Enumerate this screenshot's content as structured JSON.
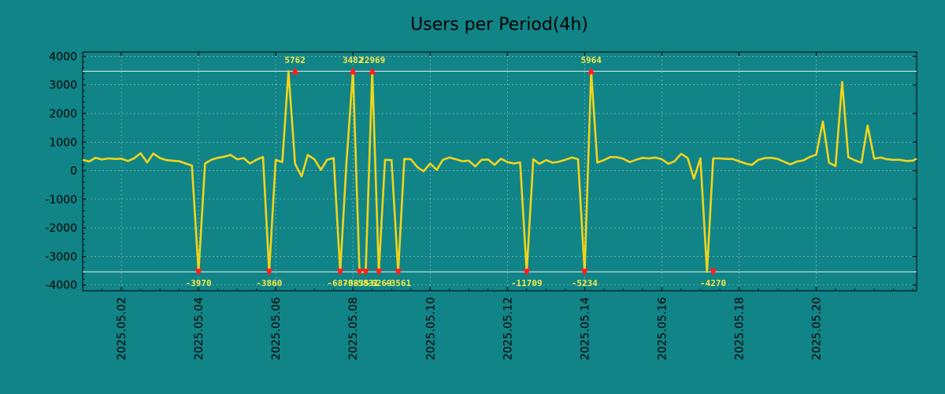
{
  "chart_data": {
    "type": "line",
    "title": "Users per Period(4h)",
    "xlabel": "",
    "ylabel": "",
    "ylim": [
      -4200,
      4150
    ],
    "y_ticks": [
      "4000",
      "3000",
      "2000",
      "1000",
      "0",
      "-1000",
      "-2000",
      "-3000",
      "-4000"
    ],
    "y_tick_values": [
      4000,
      3000,
      2000,
      1000,
      0,
      -1000,
      -2000,
      -3000,
      -4000
    ],
    "x_ticks": [
      "2025.05.02",
      "2025.05.04",
      "2025.05.06",
      "2025.05.08",
      "2025.05.10",
      "2025.05.12",
      "2025.05.14",
      "2025.05.16",
      "2025.05.18",
      "2025.05.20"
    ],
    "x_tick_days": [
      1,
      3,
      5,
      7,
      9,
      11,
      13,
      15,
      17,
      19
    ],
    "x_range_days": [
      0,
      21.6
    ],
    "thresholds": [
      3480,
      -3540
    ],
    "colors": {
      "line": "#f2d41a",
      "marker": "#ff2020",
      "background": "#108487",
      "annotation": "#f2e84a"
    },
    "series": [
      {
        "name": "Users",
        "x_days": [
          0.0,
          0.17,
          0.33,
          0.5,
          0.67,
          0.83,
          1.0,
          1.17,
          1.33,
          1.5,
          1.67,
          1.83,
          2.0,
          2.17,
          2.33,
          2.5,
          2.67,
          2.83,
          3.0,
          3.17,
          3.33,
          3.5,
          3.67,
          3.83,
          4.0,
          4.17,
          4.33,
          4.5,
          4.67,
          4.83,
          5.0,
          5.17,
          5.33,
          5.5,
          5.67,
          5.83,
          6.0,
          6.17,
          6.33,
          6.5,
          6.67,
          6.83,
          7.0,
          7.17,
          7.33,
          7.5,
          7.67,
          7.83,
          8.0,
          8.17,
          8.33,
          8.5,
          8.67,
          8.83,
          9.0,
          9.17,
          9.33,
          9.5,
          9.67,
          9.83,
          10.0,
          10.17,
          10.33,
          10.5,
          10.67,
          10.83,
          11.0,
          11.17,
          11.33,
          11.5,
          11.67,
          11.83,
          12.0,
          12.17,
          12.33,
          12.5,
          12.67,
          12.83,
          13.0,
          13.17,
          13.33,
          13.5,
          13.67,
          13.83,
          14.0,
          14.17,
          14.33,
          14.5,
          14.67,
          14.83,
          15.0,
          15.17,
          15.33,
          15.5,
          15.67,
          15.83,
          16.0,
          16.17,
          16.33,
          16.5,
          16.67,
          16.83,
          17.0,
          17.17,
          17.33,
          17.5,
          17.67,
          17.83,
          18.0,
          18.17,
          18.33,
          18.5,
          18.67,
          18.83,
          19.0,
          19.17,
          19.33,
          19.5,
          19.67,
          19.83,
          20.0,
          20.17,
          20.33,
          20.5,
          20.67,
          20.83,
          21.0,
          21.17,
          21.33,
          21.5,
          21.6
        ],
        "values": [
          380,
          320,
          450,
          390,
          430,
          410,
          420,
          340,
          430,
          610,
          290,
          600,
          440,
          370,
          350,
          330,
          250,
          180,
          -3540,
          250,
          380,
          450,
          490,
          550,
          400,
          440,
          250,
          380,
          480,
          -3540,
          380,
          300,
          3480,
          240,
          -200,
          550,
          400,
          30,
          380,
          440,
          -3540,
          260,
          3480,
          -3540,
          -3540,
          3480,
          -3540,
          380,
          370,
          -3540,
          410,
          400,
          120,
          -20,
          250,
          30,
          380,
          460,
          400,
          330,
          350,
          150,
          380,
          390,
          200,
          420,
          300,
          250,
          290,
          -3540,
          400,
          240,
          370,
          280,
          310,
          380,
          460,
          400,
          -3540,
          3480,
          280,
          370,
          480,
          470,
          420,
          300,
          380,
          450,
          430,
          460,
          400,
          240,
          330,
          590,
          440,
          -280,
          430,
          -3540,
          430,
          430,
          410,
          410,
          330,
          250,
          200,
          380,
          440,
          450,
          410,
          310,
          220,
          320,
          360,
          480,
          560,
          1720,
          280,
          160,
          3100,
          470,
          360,
          280,
          1580,
          420,
          460,
          400,
          380,
          380,
          340,
          350,
          420
        ],
        "markers_up": [
          5.5,
          7.0,
          7.5,
          13.17
        ],
        "markers_down": [
          3.0,
          4.83,
          6.67,
          7.17,
          7.33,
          7.67,
          8.17,
          11.5,
          13.0,
          16.33
        ]
      }
    ],
    "annotations": [
      {
        "text": "5762",
        "day": 5.5,
        "position": "top"
      },
      {
        "text": "3482",
        "day": 7.0,
        "position": "top"
      },
      {
        "text": "22969",
        "day": 7.5,
        "position": "top"
      },
      {
        "text": "5964",
        "day": 13.17,
        "position": "top"
      },
      {
        "text": "-3970",
        "day": 3.0,
        "position": "bottom"
      },
      {
        "text": "-3860",
        "day": 4.83,
        "position": "bottom"
      },
      {
        "text": "-6870",
        "day": 6.67,
        "position": "bottom"
      },
      {
        "text": "-5835",
        "day": 7.08,
        "position": "bottom"
      },
      {
        "text": "-5831",
        "day": 7.33,
        "position": "bottom"
      },
      {
        "text": "-6269",
        "day": 7.67,
        "position": "bottom"
      },
      {
        "text": "-3561",
        "day": 8.17,
        "position": "bottom"
      },
      {
        "text": "-11709",
        "day": 11.5,
        "position": "bottom"
      },
      {
        "text": "-5234",
        "day": 13.0,
        "position": "bottom"
      },
      {
        "text": "-4270",
        "day": 16.33,
        "position": "bottom"
      }
    ]
  }
}
